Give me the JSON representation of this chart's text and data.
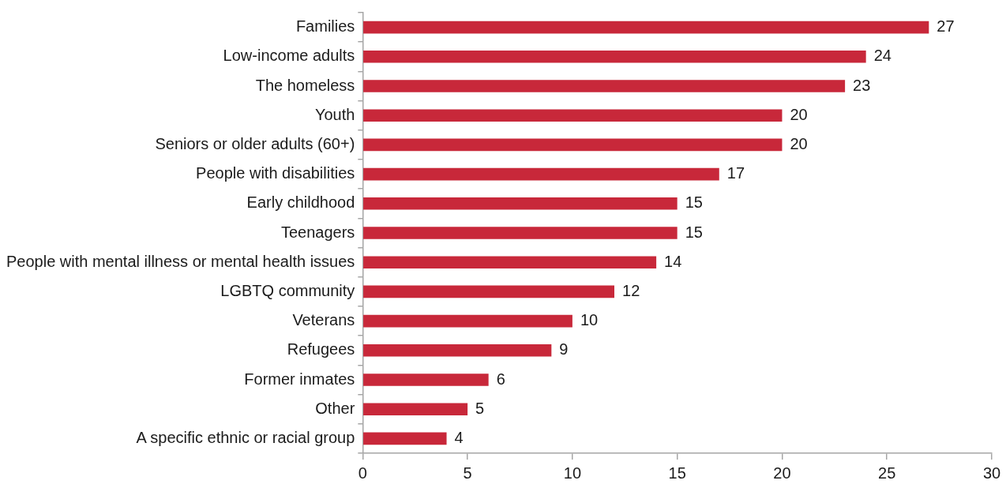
{
  "chart_data": {
    "type": "bar",
    "orientation": "horizontal",
    "categories": [
      "Families",
      "Low-income adults",
      "The homeless",
      "Youth",
      "Seniors or older adults (60+)",
      "People with disabilities",
      "Early childhood",
      "Teenagers",
      "People with mental illness or mental health issues",
      "LGBTQ community",
      "Veterans",
      "Refugees",
      "Former inmates",
      "Other",
      "A specific ethnic or racial group"
    ],
    "values": [
      27,
      24,
      23,
      20,
      20,
      17,
      15,
      15,
      14,
      12,
      10,
      9,
      6,
      5,
      4
    ],
    "color": "#c8283a",
    "xlim": [
      0,
      30
    ],
    "xticks": [
      0,
      5,
      10,
      15,
      20,
      25,
      30
    ],
    "grid": false,
    "legend": false,
    "data_labels": true
  }
}
